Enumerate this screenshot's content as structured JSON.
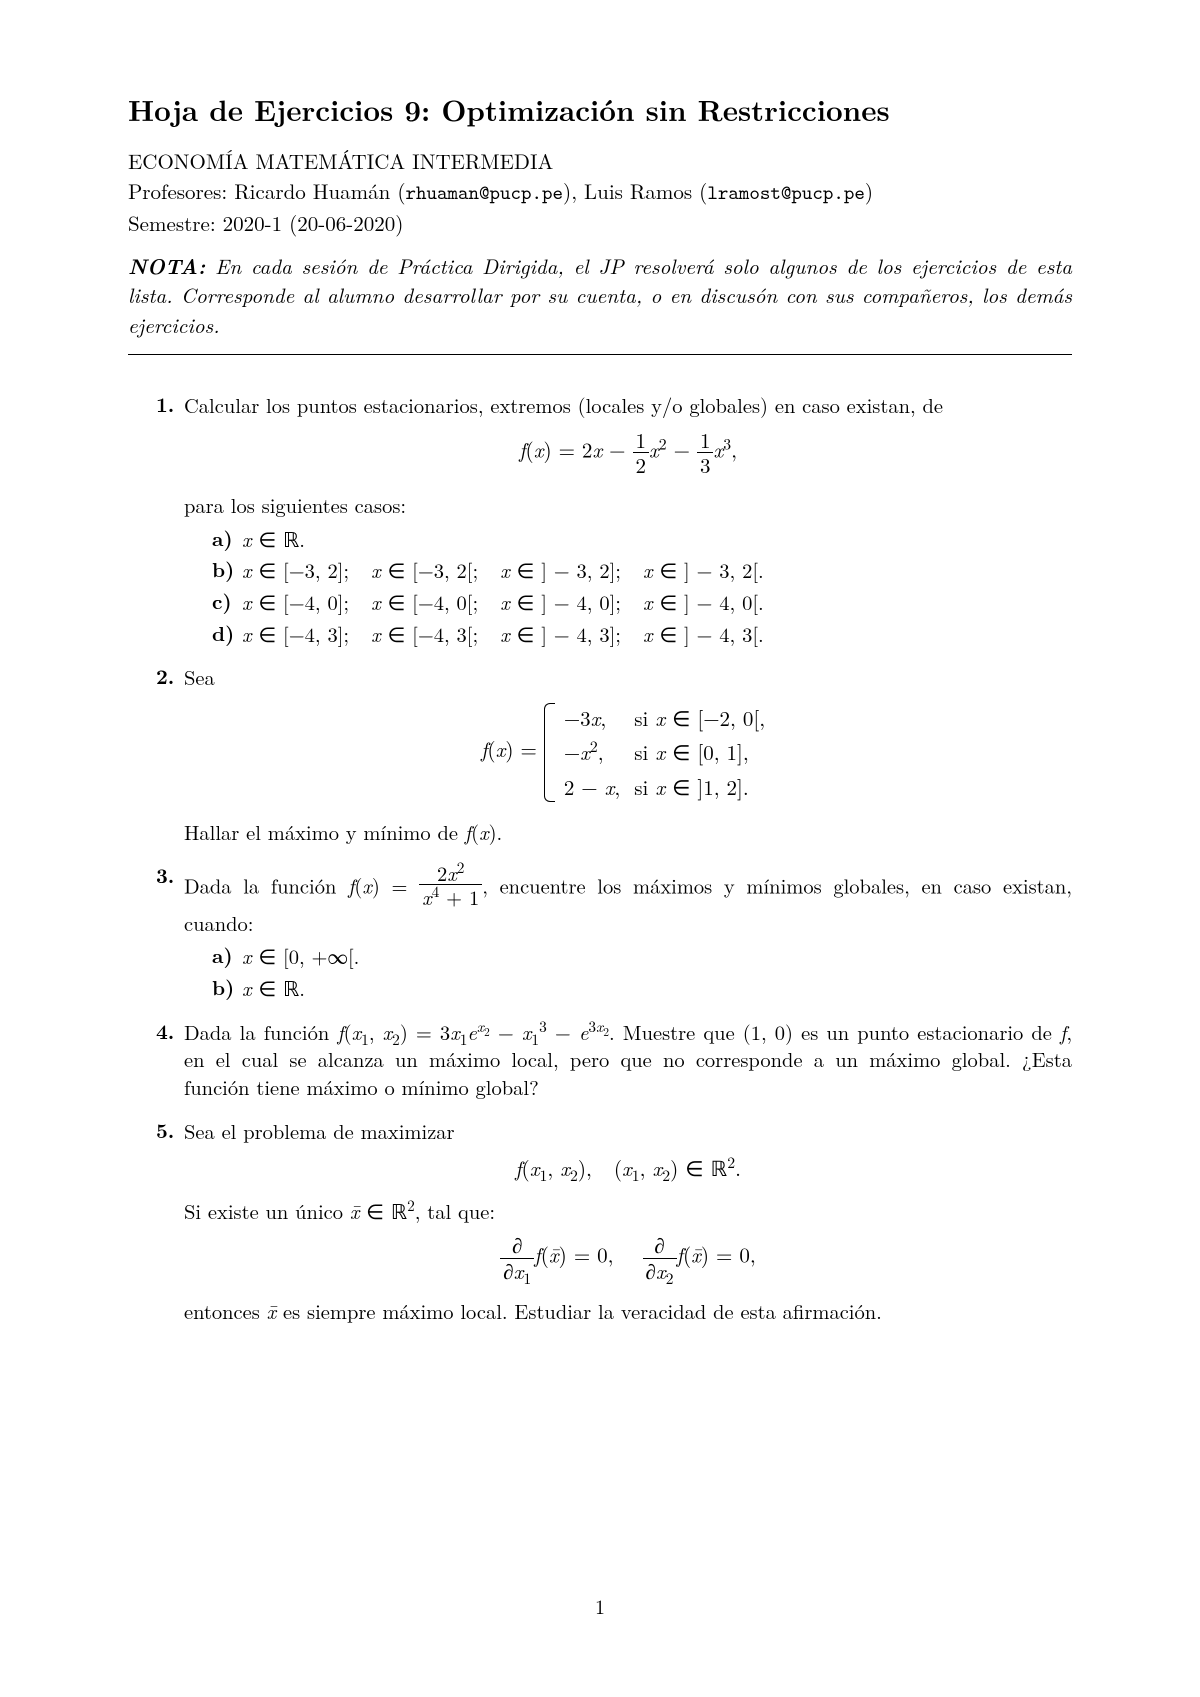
{
  "title": "Hoja de Ejercicios 9: Optimización sin Restricciones",
  "course": "ECONOMÍA MATEMÁTICA INTERMEDIA",
  "prof_label": "Profesores: ",
  "prof1_name": "Ricardo Huamán",
  "prof1_email": "rhuaman@pucp.pe",
  "prof_sep": ", ",
  "prof2_name": "Luis Ramos",
  "prof2_email": "lramost@pucp.pe",
  "semestre": "Semestre: 2020-1 (20-06-2020)",
  "nota_lead": "NOTA:",
  "nota_body": " En cada sesión de Práctica Dirigida, el JP resolverá solo algunos de los ejercicios de esta lista. Corresponde al alumno desarrollar por su cuenta, o en discusón con sus compañeros, los demás ejercicios.",
  "p1": {
    "num": "1.",
    "text_a": "Calcular los puntos estacionarios, extremos (locales y/o globales) en caso existan, de",
    "text_b": "para los siguientes casos:",
    "a": "x ∈ ℝ.",
    "b": "x ∈ [−3, 2];    x ∈ [−3, 2[;    x ∈ ] − 3, 2];    x ∈ ] − 3, 2[.",
    "c": "x ∈ [−4, 0];    x ∈ [−4, 0[;    x ∈ ] − 4, 0];    x ∈ ] − 4, 0[.",
    "d": "x ∈ [−4, 3];    x ∈ [−4, 3[;    x ∈ ] − 4, 3];    x ∈ ] − 4, 3[."
  },
  "p2": {
    "num": "2.",
    "text_a": "Sea",
    "c1a": "−3x,",
    "c1b": "si x ∈ [−2, 0[,",
    "c2a": "−x²,",
    "c2b": "si x ∈ [0, 1],",
    "c3a": "2 − x,",
    "c3b": "si x ∈ ]1, 2].",
    "text_b": "Hallar el máximo y mínimo de f(x)."
  },
  "p3": {
    "num": "3.",
    "text_a": "Dada la función ",
    "text_b": ", encuentre los máximos y mínimos globales, en caso existan, cuando:",
    "a": "x ∈ [0, +∞[.",
    "b": "x ∈ ℝ."
  },
  "p4": {
    "num": "4.",
    "text": "Dada la función f(x₁, x₂) = 3x₁eˣ² − x₁³ − e³ˣ². Muestre que (1, 0) es un punto estacionario de f, en el cual se alcanza un máximo local, pero que no corresponde a un máximo global. ¿Esta función tiene máximo o mínimo global?"
  },
  "p5": {
    "num": "5.",
    "text_a": "Sea el problema de maximizar",
    "disp1": "f(x₁, x₂),    (x₁, x₂) ∈ ℝ².",
    "text_b": "Si existe un único x̄ ∈ ℝ², tal que:",
    "text_c": "entonces x̄ es siempre máximo local. Estudiar la veracidad de esta afirmación."
  },
  "labels": {
    "a": "a)",
    "b": "b)",
    "c": "c)",
    "d": "d)"
  },
  "pagenum": "1"
}
